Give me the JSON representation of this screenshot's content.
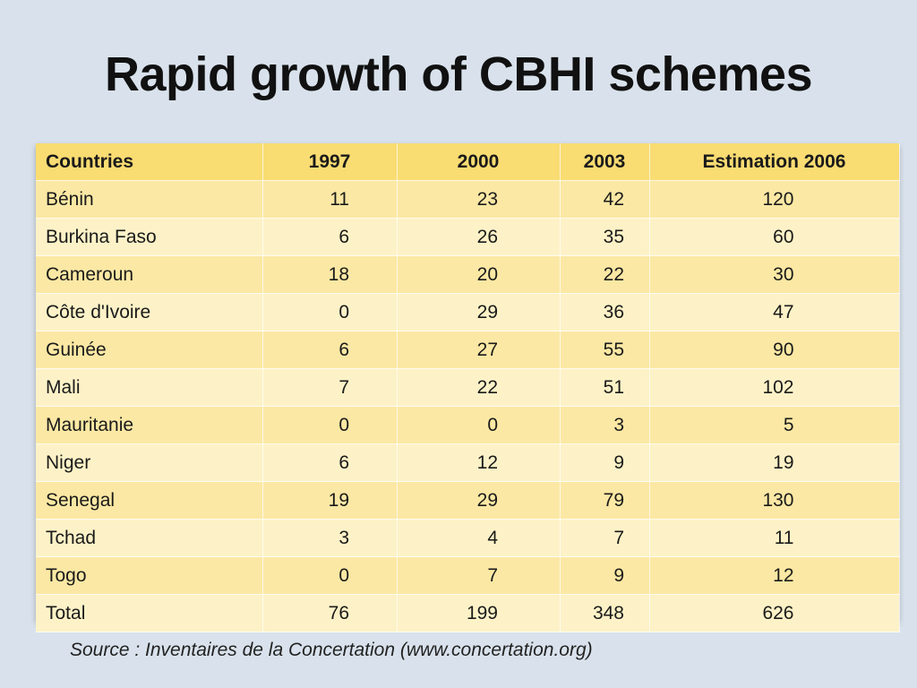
{
  "title": "Rapid growth of CBHI schemes",
  "table": {
    "headers": [
      "Countries",
      "1997",
      "2000",
      "2003",
      "Estimation 2006"
    ],
    "rows": [
      [
        "Bénin",
        "11",
        "23",
        "42",
        "120"
      ],
      [
        "Burkina Faso",
        "6",
        "26",
        "35",
        "60"
      ],
      [
        "Cameroun",
        "18",
        "20",
        "22",
        "30"
      ],
      [
        "Côte d'Ivoire",
        "0",
        "29",
        "36",
        "47"
      ],
      [
        "Guinée",
        "6",
        "27",
        "55",
        "90"
      ],
      [
        "Mali",
        "7",
        "22",
        "51",
        "102"
      ],
      [
        "Mauritanie",
        "0",
        "0",
        "3",
        "5"
      ],
      [
        "Niger",
        "6",
        "12",
        "9",
        "19"
      ],
      [
        "Senegal",
        "19",
        "29",
        "79",
        "130"
      ],
      [
        "Tchad",
        "3",
        "4",
        "7",
        "11"
      ],
      [
        "Togo",
        "0",
        "7",
        "9",
        "12"
      ],
      [
        "Total",
        "76",
        "199",
        "348",
        "626"
      ]
    ]
  },
  "source": "Source : Inventaires de la Concertation (www.concertation.org)",
  "colors": {
    "background": "#d9e2ec",
    "header": "#f9dc72",
    "row_odd": "#fbe8a4",
    "row_even": "#fdf2c7"
  }
}
